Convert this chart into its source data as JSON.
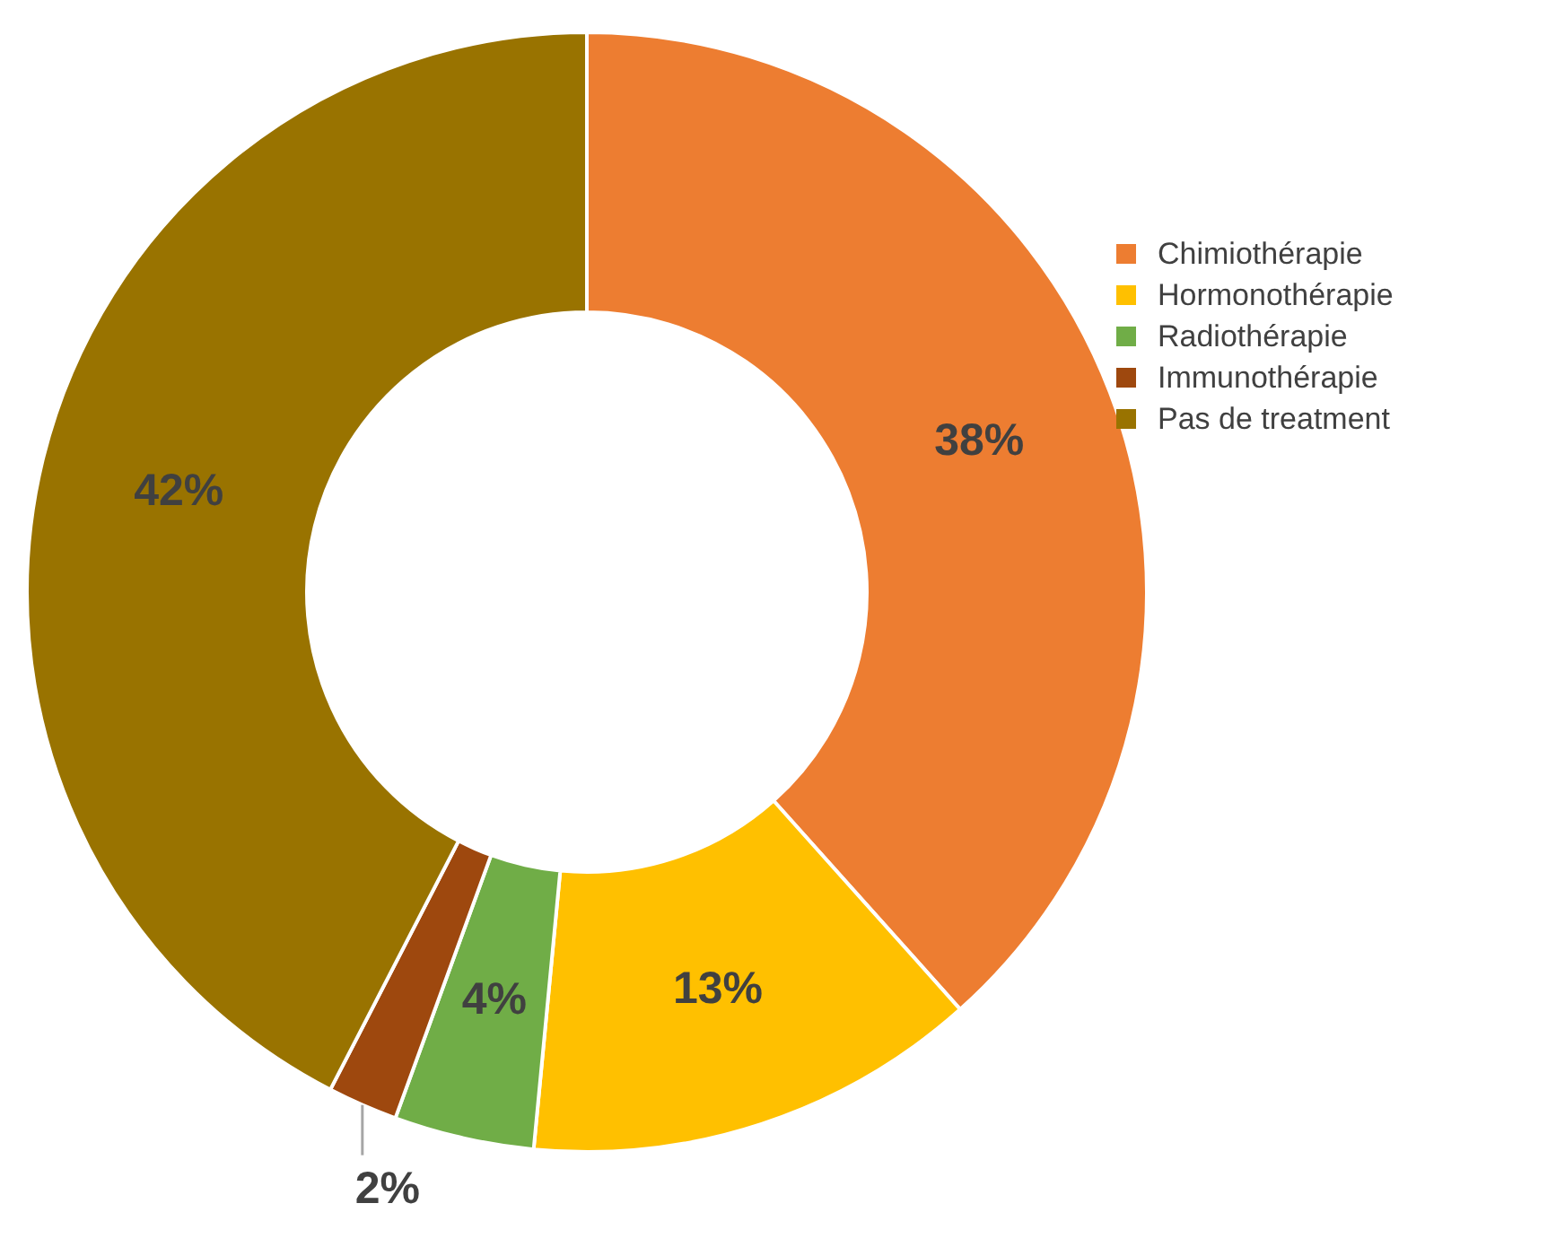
{
  "chart_data": {
    "type": "donut",
    "categories": [
      "Chimiothérapie",
      "Hormonothérapie",
      "Radiothérapie",
      "Immunothérapie",
      "Pas de treatment"
    ],
    "values": [
      38,
      13,
      4,
      2,
      42
    ],
    "colors": [
      "#ed7d31",
      "#ffc000",
      "#70ad47",
      "#9e480e",
      "#997300"
    ],
    "value_labels": [
      "38%",
      "13%",
      "4%",
      "2%",
      "42%"
    ],
    "legend": "right"
  }
}
